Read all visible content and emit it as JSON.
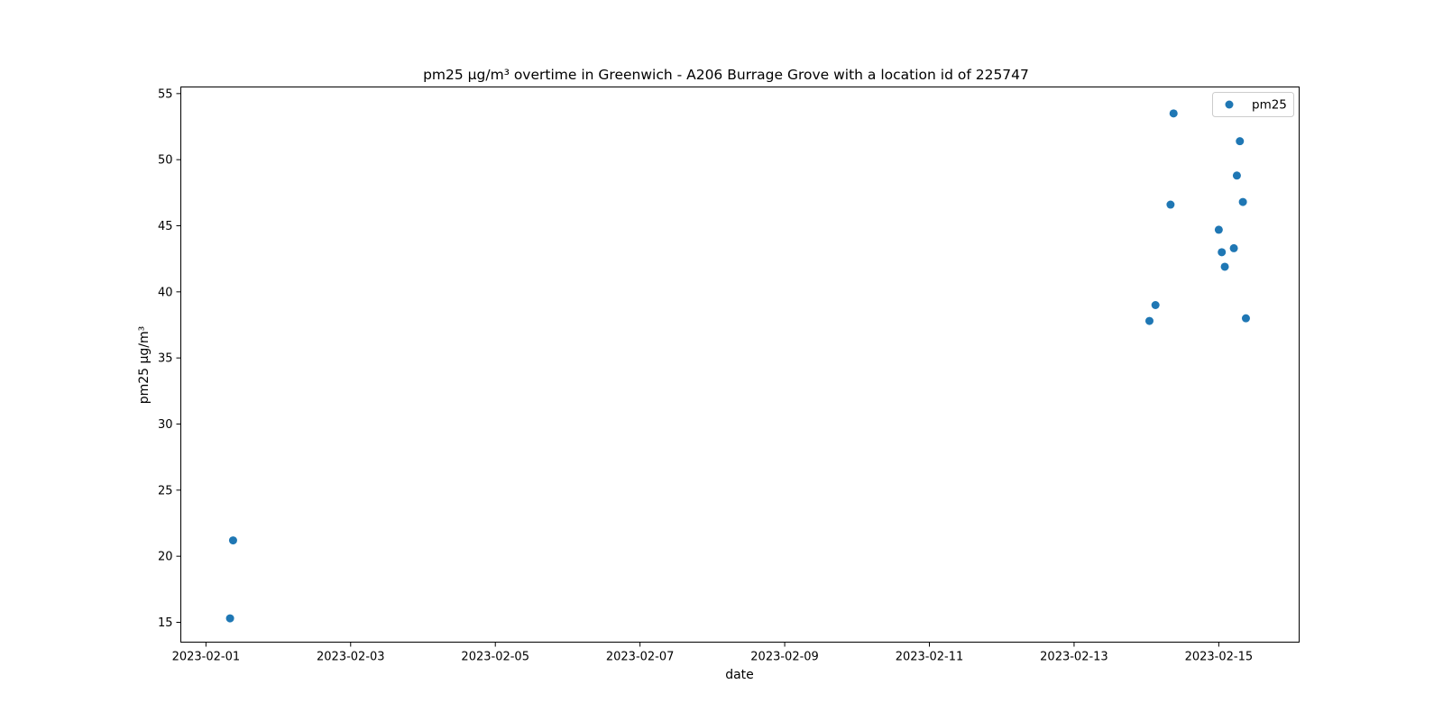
{
  "chart_data": {
    "type": "scatter",
    "title": "pm25 µg/m³ overtime in Greenwich - A206 Burrage Grove with a location id of 225747",
    "xlabel": "date",
    "ylabel": "pm25 µg/m³",
    "x_type": "date",
    "xlim": [
      "2023-01-31T15:40",
      "2023-02-16T02:40"
    ],
    "ylim": [
      13.5,
      55.5
    ],
    "xticks": [
      "2023-02-01",
      "2023-02-03",
      "2023-02-05",
      "2023-02-07",
      "2023-02-09",
      "2023-02-11",
      "2023-02-13",
      "2023-02-15"
    ],
    "yticks": [
      15,
      20,
      25,
      30,
      35,
      40,
      45,
      50,
      55
    ],
    "grid": false,
    "legend_position": "top-right",
    "series": [
      {
        "name": "pm25",
        "color": "#1f77b4",
        "points": [
          {
            "x": "2023-02-01T08:00",
            "y": 15.3
          },
          {
            "x": "2023-02-01T09:00",
            "y": 21.2
          },
          {
            "x": "2023-02-14T01:00",
            "y": 37.8
          },
          {
            "x": "2023-02-14T03:00",
            "y": 39.0
          },
          {
            "x": "2023-02-14T08:00",
            "y": 46.6
          },
          {
            "x": "2023-02-14T09:00",
            "y": 53.5
          },
          {
            "x": "2023-02-15T00:00",
            "y": 44.7
          },
          {
            "x": "2023-02-15T01:00",
            "y": 43.0
          },
          {
            "x": "2023-02-15T02:00",
            "y": 41.9
          },
          {
            "x": "2023-02-15T05:00",
            "y": 43.3
          },
          {
            "x": "2023-02-15T06:00",
            "y": 48.8
          },
          {
            "x": "2023-02-15T07:00",
            "y": 51.4
          },
          {
            "x": "2023-02-15T08:00",
            "y": 46.8
          },
          {
            "x": "2023-02-15T09:00",
            "y": 38.0
          }
        ]
      }
    ]
  }
}
